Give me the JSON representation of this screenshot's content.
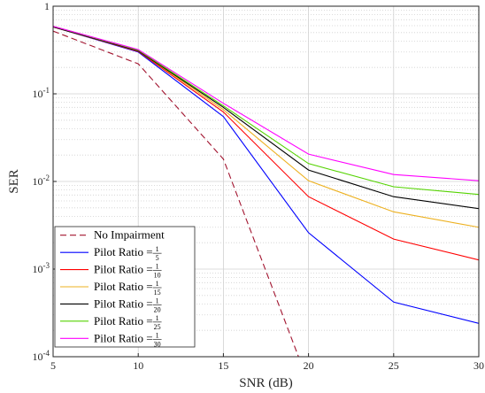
{
  "chart_data": {
    "type": "line",
    "title": "",
    "xlabel": "SNR (dB)",
    "ylabel": "SER",
    "x": [
      5,
      10,
      15,
      20,
      25,
      30
    ],
    "xlim": [
      5,
      30
    ],
    "ylim": [
      0.0001,
      1
    ],
    "yscale": "log",
    "grid": true,
    "legend_location": "bottom-left",
    "xticks": [
      "5",
      "10",
      "15",
      "20",
      "25",
      "30"
    ],
    "yticks": [
      {
        "base": "10",
        "exp": "-4"
      },
      {
        "base": "10",
        "exp": "-3"
      },
      {
        "base": "10",
        "exp": "-2"
      },
      {
        "base": "10",
        "exp": "-1"
      },
      {
        "base": "1",
        "exp": ""
      }
    ],
    "series": [
      {
        "name": "No Impairment",
        "color": "#a2142f",
        "dash": true,
        "x": [
          5,
          10,
          15,
          20
        ],
        "values": [
          0.52,
          0.22,
          0.018,
          5e-05
        ]
      },
      {
        "name": "Pilot Ratio",
        "frac_num": "1",
        "frac_den": "5",
        "color": "#0000ff",
        "dash": false,
        "x": [
          5,
          10,
          15,
          20,
          25,
          30
        ],
        "values": [
          0.58,
          0.3,
          0.055,
          0.0026,
          0.00042,
          0.00024
        ]
      },
      {
        "name": "Pilot Ratio",
        "frac_num": "1",
        "frac_den": "10",
        "color": "#ff0000",
        "dash": false,
        "x": [
          5,
          10,
          15,
          20,
          25,
          30
        ],
        "values": [
          0.58,
          0.305,
          0.062,
          0.0067,
          0.0022,
          0.00127
        ]
      },
      {
        "name": "Pilot Ratio",
        "frac_num": "1",
        "frac_den": "15",
        "color": "#edb120",
        "dash": false,
        "x": [
          5,
          10,
          15,
          20,
          25,
          30
        ],
        "values": [
          0.58,
          0.31,
          0.066,
          0.0102,
          0.0045,
          0.003
        ]
      },
      {
        "name": "Pilot Ratio",
        "frac_num": "1",
        "frac_den": "20",
        "color": "#000000",
        "dash": false,
        "x": [
          5,
          10,
          15,
          20,
          25,
          30
        ],
        "values": [
          0.58,
          0.31,
          0.07,
          0.0135,
          0.0067,
          0.0049
        ]
      },
      {
        "name": "Pilot Ratio",
        "frac_num": "1",
        "frac_den": "25",
        "color": "#54d300",
        "dash": false,
        "x": [
          5,
          10,
          15,
          20,
          25,
          30
        ],
        "values": [
          0.59,
          0.315,
          0.073,
          0.016,
          0.0087,
          0.0071
        ]
      },
      {
        "name": "Pilot Ratio",
        "frac_num": "1",
        "frac_den": "30",
        "color": "#ff00ff",
        "dash": false,
        "x": [
          5,
          10,
          15,
          20,
          25,
          30
        ],
        "values": [
          0.59,
          0.32,
          0.078,
          0.0205,
          0.012,
          0.0102
        ]
      }
    ]
  }
}
